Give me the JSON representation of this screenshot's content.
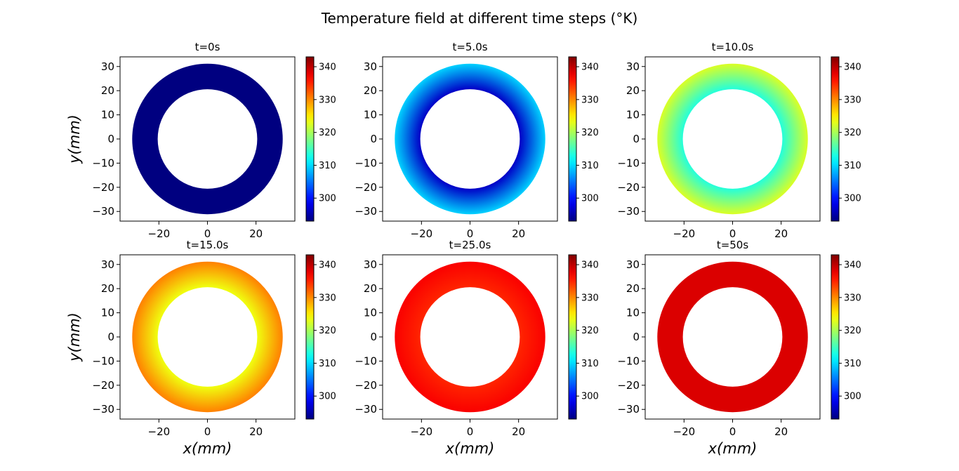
{
  "figure": {
    "suptitle": "Temperature field at different time steps ($^\\circ$K)",
    "suptitle_display": "Temperature field at different time steps (°K)"
  },
  "chart_data": {
    "type": "heatmap",
    "colormap": "jet",
    "layout": {
      "rows": 2,
      "cols": 3
    },
    "shape": "annulus",
    "inner_radius_mm": 20.5,
    "outer_radius_mm": 31,
    "xlim": [
      -36,
      36
    ],
    "ylim": [
      -34,
      34
    ],
    "xticks": [
      -20,
      0,
      20
    ],
    "yticks": [
      -30,
      -20,
      -10,
      0,
      10,
      20,
      30
    ],
    "xtick_labels": [
      "−20",
      "0",
      "20"
    ],
    "ytick_labels": [
      "−30",
      "−20",
      "−10",
      "0",
      "10",
      "20",
      "30"
    ],
    "xlabel": "x(mm)",
    "ylabel": "y(mm)",
    "colorbar": {
      "vmin": 293,
      "vmax": 343,
      "ticks": [
        300,
        310,
        320,
        330,
        340
      ],
      "tick_labels": [
        "300",
        "310",
        "320",
        "330",
        "340"
      ]
    },
    "panels": [
      {
        "title": "t=0s",
        "t_outer": 293.0,
        "t_inner": 293.0
      },
      {
        "title": "t=5.0s",
        "t_outer": 309.5,
        "t_inner": 296.5
      },
      {
        "title": "t=10.0s",
        "t_outer": 322.5,
        "t_inner": 313.5
      },
      {
        "title": "t=15.0s",
        "t_outer": 330.5,
        "t_inner": 323.5
      },
      {
        "title": "t=25.0s",
        "t_outer": 337.0,
        "t_inner": 335.0
      },
      {
        "title": "t=50s",
        "t_outer": 338.5,
        "t_inner": 338.5
      }
    ]
  }
}
